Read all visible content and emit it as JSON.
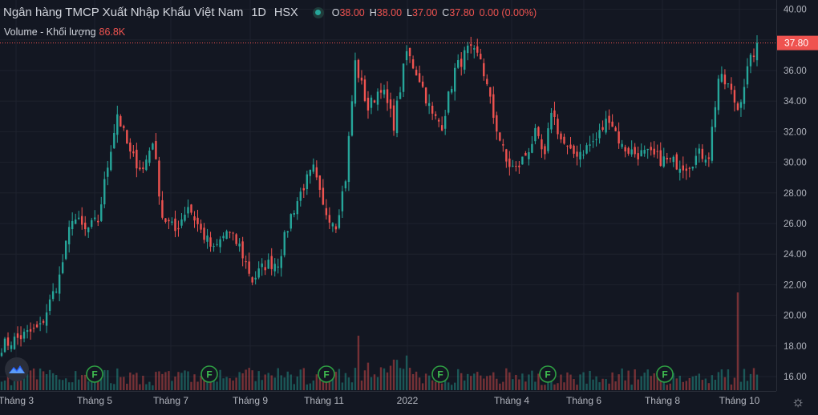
{
  "header": {
    "title": "Ngân hàng TMCP Xuất Nhập Khẩu Việt Nam",
    "interval": "1D",
    "exchange": "HSX",
    "ohlc": {
      "o_label": "O",
      "o": "38.00",
      "h_label": "H",
      "h": "38.00",
      "l_label": "L",
      "l": "37.00",
      "c_label": "C",
      "c": "37.80",
      "change": "0.00 (0.00%)"
    }
  },
  "volume": {
    "label": "Volume - Khối lượng",
    "value": "86.8K"
  },
  "last_price_label": "37.80",
  "event_marker_label": "F",
  "colors": {
    "background": "#131722",
    "up": "#26a69a",
    "down": "#ef5350",
    "grid": "#1e222d",
    "axis_text": "#b2b5be"
  },
  "chart_data": {
    "type": "candlestick",
    "y_ticks": [
      "16.00",
      "18.00",
      "20.00",
      "22.00",
      "24.00",
      "26.00",
      "28.00",
      "30.00",
      "32.00",
      "34.00",
      "36.00",
      "38.00",
      "40.00"
    ],
    "ylim": [
      15,
      40.5
    ],
    "x_tick_labels": [
      "Tháng 3",
      "Tháng 5",
      "Tháng 7",
      "Tháng 9",
      "Tháng 11",
      "2022",
      "Tháng 4",
      "Tháng 6",
      "Tháng 8",
      "Tháng 10"
    ],
    "last_price": 37.8,
    "event_markers": 7,
    "close_trend": [
      [
        0,
        18.0
      ],
      [
        6,
        18.6
      ],
      [
        12,
        19.2
      ],
      [
        18,
        22.5
      ],
      [
        22,
        26.5
      ],
      [
        26,
        25.5
      ],
      [
        30,
        26.2
      ],
      [
        34,
        31.0
      ],
      [
        36,
        33.2
      ],
      [
        40,
        30.5
      ],
      [
        44,
        29.5
      ],
      [
        47,
        31.5
      ],
      [
        50,
        26.5
      ],
      [
        54,
        25.5
      ],
      [
        58,
        27.2
      ],
      [
        62,
        25.5
      ],
      [
        66,
        24.2
      ],
      [
        70,
        25.5
      ],
      [
        74,
        24.5
      ],
      [
        78,
        22.3
      ],
      [
        82,
        23.3
      ],
      [
        86,
        23.5
      ],
      [
        90,
        26.5
      ],
      [
        94,
        28.5
      ],
      [
        97,
        29.5
      ],
      [
        100,
        27.0
      ],
      [
        104,
        26.0
      ],
      [
        107,
        29.0
      ],
      [
        110,
        36.5
      ],
      [
        114,
        33.5
      ],
      [
        118,
        35.0
      ],
      [
        122,
        32.5
      ],
      [
        126,
        37.2
      ],
      [
        130,
        35.5
      ],
      [
        134,
        33.0
      ],
      [
        137,
        32.5
      ],
      [
        141,
        36.0
      ],
      [
        145,
        37.3
      ],
      [
        149,
        36.8
      ],
      [
        153,
        33.0
      ],
      [
        157,
        30.0
      ],
      [
        160,
        29.5
      ],
      [
        163,
        30.5
      ],
      [
        166,
        31.8
      ],
      [
        169,
        30.2
      ],
      [
        171,
        33.5
      ],
      [
        174,
        31.5
      ],
      [
        177,
        30.5
      ],
      [
        181,
        30.8
      ],
      [
        185,
        31.5
      ],
      [
        189,
        33.0
      ],
      [
        193,
        31.0
      ],
      [
        197,
        30.6
      ],
      [
        201,
        30.5
      ],
      [
        205,
        30.2
      ],
      [
        209,
        30.0
      ],
      [
        213,
        29.8
      ],
      [
        217,
        30.5
      ],
      [
        220,
        30.5
      ],
      [
        223,
        35.5
      ],
      [
        226,
        35.0
      ],
      [
        229,
        33.5
      ],
      [
        232,
        36.0
      ],
      [
        235,
        37.8
      ]
    ]
  }
}
